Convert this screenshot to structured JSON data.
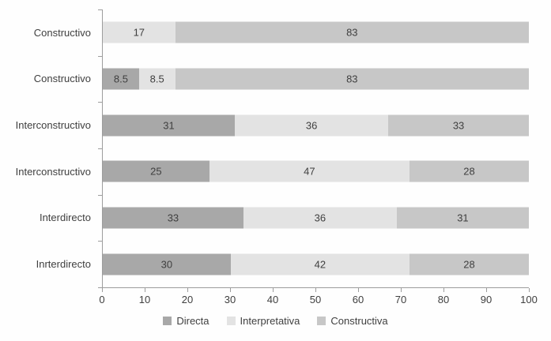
{
  "chart_data": {
    "type": "bar",
    "orientation": "horizontal",
    "stacked": true,
    "title": "",
    "xlabel": "",
    "ylabel": "",
    "categories": [
      "Constructivo",
      "Constructivo",
      "Interconstructivo",
      "Interconstructivo",
      "Interdirecto",
      "Inrterdirecto"
    ],
    "series": [
      {
        "name": "Directa",
        "color": "#a8a8a8",
        "values": [
          0,
          8.5,
          31,
          25,
          33,
          30
        ]
      },
      {
        "name": "Interpretativa",
        "color": "#e3e3e3",
        "values": [
          17,
          8.5,
          36,
          47,
          36,
          42
        ]
      },
      {
        "name": "Constructiva",
        "color": "#c7c7c7",
        "values": [
          83,
          83,
          33,
          28,
          31,
          28
        ]
      }
    ],
    "xlim": [
      0,
      100
    ],
    "xticks": [
      0,
      10,
      20,
      30,
      40,
      50,
      60,
      70,
      80,
      90,
      100
    ],
    "grid": false,
    "legend_position": "bottom",
    "legend": [
      "Directa",
      "Interpretativa",
      "Constructiva"
    ],
    "axis_color": "#9d9d9d",
    "text_color": "#3f3f3f",
    "background_color": "#fefefe"
  }
}
